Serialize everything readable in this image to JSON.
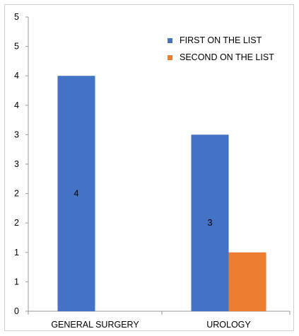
{
  "chart_data": {
    "type": "bar",
    "categories": [
      "GENERAL SURGERY",
      "UROLOGY"
    ],
    "series": [
      {
        "name": "FIRST ON THE LIST",
        "values": [
          4,
          3
        ],
        "color": "#4472c4"
      },
      {
        "name": "SECOND ON THE LIST",
        "values": [
          0,
          1
        ],
        "color": "#ed7d31"
      }
    ],
    "data_labels": [
      {
        "series": 0,
        "category": 0,
        "text": "4"
      },
      {
        "series": 0,
        "category": 1,
        "text": "3"
      }
    ],
    "y_tick_labels": [
      "0",
      "1",
      "1",
      "2",
      "2",
      "3",
      "3",
      "4",
      "4",
      "5",
      "5"
    ],
    "ylim": [
      0,
      5
    ],
    "grid": false,
    "legend_position": "top-right"
  }
}
